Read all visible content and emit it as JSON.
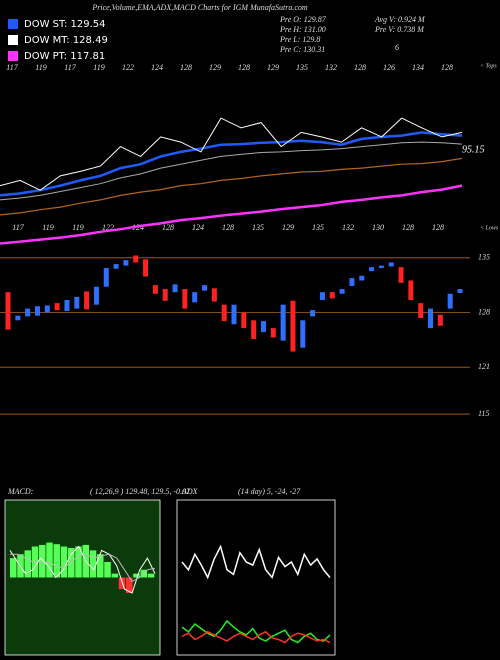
{
  "header": {
    "title": "Price,Volume,EMA,ADX,MACD Charts for IGM MunafaSutra.com",
    "legend": [
      {
        "label": "DOW ST: 129.54",
        "color": "#1e5bff"
      },
      {
        "label": "DOW MT: 128.49",
        "color": "#ffffff"
      },
      {
        "label": "DOW PT: 117.81",
        "color": "#ff33ff"
      }
    ],
    "info_left": [
      "Pre  O: 129.87",
      "Pre  H: 131.00",
      "Pre  L: 129.8",
      "Pre  C: 130.31"
    ],
    "info_right": [
      "Avg V: 0.924  M",
      "Pre  V: 0.738  M",
      "6"
    ]
  },
  "chart_data": [
    {
      "type": "line",
      "top_labels": [
        "117",
        "119",
        "117",
        "119",
        "122",
        "124",
        "128",
        "129",
        "128",
        "129",
        "135",
        "132",
        "128",
        "126",
        "134",
        "128"
      ],
      "bottom_labels": [
        "117",
        "119",
        "119",
        "122",
        "124",
        "128",
        "124",
        "128",
        "135",
        "129",
        "135",
        "132",
        "130",
        "128",
        "128"
      ],
      "tops_label": "< Tops",
      "lows_label": "< Lows",
      "annotation": "95.15",
      "ylim": [
        107,
        137
      ],
      "series": [
        {
          "color": "#ffffff",
          "width": 1,
          "values": [
            116.9,
            117.7,
            116.2,
            118.4,
            119.1,
            119.9,
            122.9,
            121.4,
            124.4,
            123.6,
            122.1,
            127.3,
            125.8,
            126.6,
            122.9,
            125.1,
            124.4,
            123.6,
            125.8,
            124.4,
            127.3,
            125.8,
            124.4,
            125.1
          ]
        },
        {
          "color": "#aaaaaa",
          "width": 1,
          "values": [
            114.7,
            115.0,
            115.4,
            116.0,
            116.6,
            117.2,
            118.1,
            118.7,
            119.6,
            120.2,
            120.8,
            121.4,
            121.7,
            122.0,
            122.1,
            122.3,
            122.4,
            122.6,
            122.9,
            123.2,
            123.5,
            123.6,
            123.5,
            123.3
          ]
        },
        {
          "color": "#1e5bff",
          "width": 2.5,
          "values": [
            115.4,
            115.7,
            116.2,
            116.9,
            117.7,
            118.4,
            119.6,
            120.2,
            121.4,
            122.1,
            122.6,
            123.2,
            123.3,
            123.5,
            123.6,
            123.8,
            123.6,
            123.2,
            124.1,
            124.4,
            124.6,
            125.1,
            124.8,
            124.6
          ]
        },
        {
          "color": "#b5651d",
          "width": 1.2,
          "values": [
            112.4,
            112.7,
            113.2,
            113.6,
            114.2,
            114.7,
            115.4,
            115.9,
            116.3,
            116.9,
            117.2,
            117.7,
            118.0,
            118.4,
            118.7,
            119.0,
            119.1,
            119.4,
            119.6,
            119.9,
            120.2,
            120.3,
            120.6,
            121.1
          ]
        },
        {
          "color": "#ff33ff",
          "width": 2.5,
          "values": [
            108.0,
            108.3,
            108.6,
            108.9,
            109.3,
            109.8,
            110.2,
            110.7,
            111.1,
            111.6,
            111.9,
            112.3,
            112.6,
            112.9,
            113.3,
            113.6,
            113.9,
            114.4,
            114.7,
            115.1,
            115.4,
            115.9,
            116.3,
            116.9
          ]
        }
      ]
    },
    {
      "type": "candlestick",
      "up_color": "#2f6fff",
      "down_color": "#ff2222",
      "grid_color": "#b5651d",
      "ylim": [
        113.6,
        136
      ],
      "yticks": [
        135,
        128,
        121,
        115
      ],
      "open": [
        130.6,
        127.0,
        127.5,
        127.6,
        128.0,
        129.2,
        128.2,
        128.5,
        130.7,
        129.0,
        131.3,
        133.6,
        134.0,
        135.3,
        134.8,
        131.5,
        131.0,
        130.6,
        131.0,
        129.3,
        130.8,
        131.1,
        129.0,
        126.5,
        128.0,
        127.0,
        125.5,
        126.0,
        124.4,
        129.5,
        123.5,
        127.5,
        129.6,
        130.6,
        130.4,
        131.4,
        132.1,
        133.3,
        133.7,
        133.9,
        133.8,
        132.1,
        129.2,
        126.0,
        127.7,
        128.5,
        130.5
      ],
      "close": [
        125.8,
        127.6,
        128.5,
        128.8,
        128.9,
        128.3,
        129.6,
        130.0,
        128.4,
        131.3,
        133.7,
        134.2,
        134.7,
        134.4,
        132.6,
        130.4,
        129.5,
        131.6,
        128.5,
        130.6,
        131.5,
        129.4,
        126.9,
        129.0,
        126.0,
        124.6,
        126.9,
        124.8,
        129.0,
        123.0,
        127.0,
        128.3,
        130.6,
        129.8,
        131.0,
        132.4,
        132.7,
        133.8,
        134.0,
        134.4,
        131.8,
        129.6,
        127.3,
        128.5,
        126.3,
        130.4,
        131.0
      ]
    },
    {
      "type": "macd",
      "title": "MACD:",
      "params": "( 12,26,9 ) 129.48,  129.5,  -0.07",
      "background": "#0b3a0b",
      "hist_color": "#55ff55",
      "ylim": [
        -1,
        1
      ],
      "histogram": [
        0.25,
        0.3,
        0.35,
        0.4,
        0.42,
        0.45,
        0.43,
        0.4,
        0.38,
        0.4,
        0.42,
        0.35,
        0.3,
        0.2,
        0.05,
        -0.15,
        -0.2,
        0.05,
        0.1,
        0.05
      ],
      "series": [
        {
          "color": "#ffffff",
          "values": [
            0.35,
            0.2,
            0.05,
            0.1,
            0.25,
            0.15,
            0.0,
            0.1,
            0.3,
            0.4,
            0.2,
            0.1,
            0.35,
            0.3,
            0.15,
            -0.15,
            -0.2,
            0.1,
            0.25,
            0.05
          ]
        },
        {
          "color": "#bbbbbb",
          "values": [
            0.3,
            0.3,
            0.25,
            0.2,
            0.2,
            0.2,
            0.15,
            0.12,
            0.2,
            0.28,
            0.3,
            0.25,
            0.28,
            0.3,
            0.25,
            0.1,
            -0.05,
            0.0,
            0.1,
            0.12
          ]
        }
      ]
    },
    {
      "type": "adx",
      "title": "ADX",
      "params": "(14 day) 5,  -24,  -27",
      "background": "#000000",
      "ylim": [
        0,
        100
      ],
      "series": [
        {
          "color": "#ffffff",
          "values": [
            60,
            55,
            65,
            58,
            50,
            62,
            70,
            55,
            52,
            66,
            60,
            58,
            68,
            55,
            50,
            63,
            57,
            60,
            52,
            65,
            58,
            62,
            55,
            50
          ]
        },
        {
          "color": "#22ee22",
          "values": [
            18,
            15,
            20,
            17,
            14,
            12,
            16,
            22,
            18,
            15,
            13,
            17,
            11,
            9,
            12,
            14,
            16,
            10,
            8,
            12,
            14,
            10,
            9,
            13
          ]
        },
        {
          "color": "#ff3322",
          "values": [
            12,
            14,
            10,
            12,
            15,
            13,
            11,
            9,
            12,
            14,
            12,
            10,
            13,
            15,
            11,
            10,
            8,
            12,
            14,
            13,
            11,
            9,
            10,
            8
          ]
        }
      ]
    }
  ]
}
